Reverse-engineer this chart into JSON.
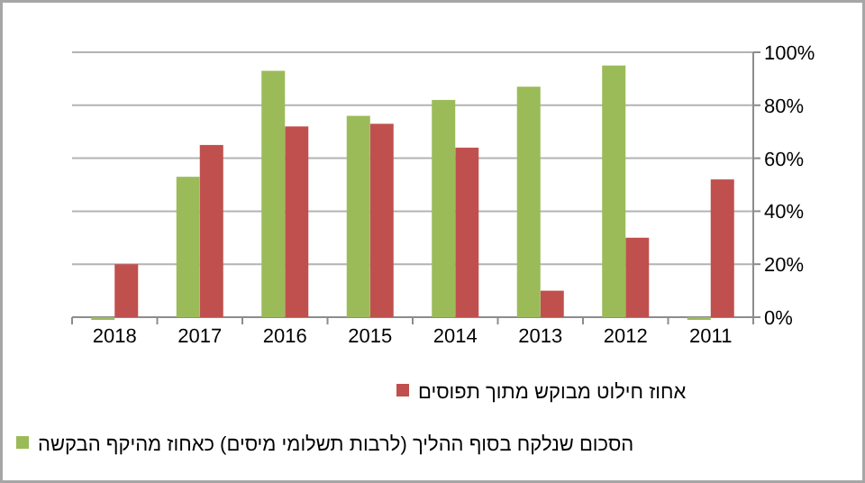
{
  "chart_data": {
    "type": "bar",
    "categories": [
      "2018",
      "2017",
      "2016",
      "2015",
      "2014",
      "2013",
      "2012",
      "2011"
    ],
    "series": [
      {
        "name": "אחוז חילוט מבוקש מתוך תפוסים",
        "color": "#c0504d",
        "values": [
          20,
          65,
          72,
          73,
          64,
          10,
          30,
          52
        ]
      },
      {
        "name": "הסכום שנלקח בסוף ההליך (לרבות תשלומי מיסים) כאחוז מהיקף הבקשה",
        "color": "#9bbb59",
        "values": [
          0,
          53,
          93,
          76,
          82,
          87,
          95,
          0
        ]
      }
    ],
    "ylim": [
      0,
      100
    ],
    "yticks": [
      {
        "value": 0,
        "label": "0%"
      },
      {
        "value": 20,
        "label": "20%"
      },
      {
        "value": 40,
        "label": "40%"
      },
      {
        "value": 60,
        "label": "60%"
      },
      {
        "value": 80,
        "label": "80%"
      },
      {
        "value": 100,
        "label": "100%"
      }
    ],
    "grid": "y",
    "legend": "bottom"
  }
}
